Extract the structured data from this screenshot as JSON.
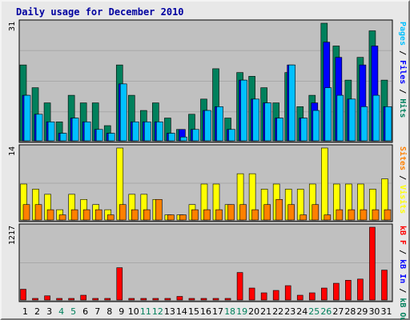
{
  "chart_data": {
    "type": "bar",
    "title": "Daily usage for December 2010",
    "categories": [
      "1",
      "2",
      "3",
      "4",
      "5",
      "6",
      "7",
      "8",
      "9",
      "10",
      "11",
      "12",
      "13",
      "14",
      "15",
      "16",
      "17",
      "18",
      "19",
      "20",
      "21",
      "22",
      "23",
      "24",
      "25",
      "26",
      "27",
      "28",
      "29",
      "30",
      "31"
    ],
    "weekend_days": [
      4,
      5,
      11,
      12,
      18,
      19,
      25,
      26
    ],
    "colors": {
      "title": "#0000a0",
      "hits": "#00805c",
      "files": "#0000ff",
      "pages": "#00c0ff",
      "visits": "#ffff00",
      "sites": "#ff8000",
      "kbin": "#0000ff",
      "kbout": "#00805c",
      "kbf": "#ff0000",
      "weekday_label": "#000000",
      "weekend_label": "#00805c",
      "plot_bg": "#c0c0c0",
      "frame_bg": "#e8e8e8"
    },
    "panels": [
      {
        "id": "hits_files_pages",
        "ymax": 31,
        "ymax_label": "31",
        "legend": [
          {
            "text": "Pages",
            "color": "#00c0ff"
          },
          {
            "text": " / ",
            "color": "#000000"
          },
          {
            "text": "Files",
            "color": "#0000ff"
          },
          {
            "text": " / ",
            "color": "#000000"
          },
          {
            "text": "Hits",
            "color": "#00805c"
          }
        ],
        "series": [
          {
            "name": "Hits",
            "color": "#00805c",
            "values": [
              20,
              14,
              10,
              5,
              12,
              10,
              10,
              4,
              20,
              12,
              8,
              10,
              6,
              3,
              7,
              11,
              19,
              6,
              18,
              17,
              14,
              10,
              18,
              9,
              12,
              31,
              25,
              16,
              22,
              29,
              16
            ]
          },
          {
            "name": "Files",
            "color": "#0000ff",
            "values": [
              12,
              7,
              5,
              2,
              6,
              5,
              3,
              2,
              15,
              5,
              5,
              5,
              2,
              3,
              3,
              8,
              9,
              3,
              16,
              11,
              10,
              6,
              20,
              6,
              10,
              26,
              22,
              11,
              20,
              25,
              9
            ]
          },
          {
            "name": "Pages",
            "color": "#00c0ff",
            "values": [
              12,
              7,
              5,
              2,
              6,
              5,
              3,
              2,
              15,
              5,
              5,
              5,
              2,
              1,
              3,
              8,
              9,
              3,
              16,
              11,
              10,
              6,
              20,
              6,
              8,
              14,
              12,
              11,
              9,
              12,
              9
            ]
          }
        ]
      },
      {
        "id": "visits_sites",
        "ymax": 14,
        "ymax_label": "14",
        "legend": [
          {
            "text": "Sites",
            "color": "#ff8000"
          },
          {
            "text": " / ",
            "color": "#000000"
          },
          {
            "text": "Visits",
            "color": "#ffff00"
          }
        ],
        "series": [
          {
            "name": "Visits",
            "color": "#ffff00",
            "values": [
              7,
              6,
              5,
              2,
              5,
              4,
              3,
              2,
              14,
              5,
              5,
              4,
              1,
              1,
              3,
              7,
              7,
              3,
              9,
              9,
              6,
              7,
              6,
              6,
              7,
              14,
              7,
              7,
              7,
              6,
              8
            ]
          },
          {
            "name": "Sites",
            "color": "#ff8000",
            "values": [
              3,
              3,
              2,
              1,
              2,
              2,
              2,
              1,
              3,
              2,
              2,
              4,
              1,
              1,
              2,
              2,
              2,
              3,
              3,
              2,
              3,
              4,
              3,
              1,
              3,
              1,
              2,
              2,
              2,
              2,
              2
            ]
          }
        ]
      },
      {
        "id": "kbytes",
        "ymax": 1217,
        "ymax_label": "1217",
        "legend": [
          {
            "text": "kB F",
            "color": "#ff0000"
          },
          {
            "text": " / ",
            "color": "#000000"
          },
          {
            "text": "kB In",
            "color": "#0000ff"
          },
          {
            "text": " / ",
            "color": "#000000"
          },
          {
            "text": "kB Out",
            "color": "#00805c"
          }
        ],
        "series": [
          {
            "name": "kB F",
            "color": "#ff0000",
            "values": [
              180,
              20,
              70,
              10,
              10,
              80,
              15,
              15,
              540,
              15,
              10,
              15,
              10,
              60,
              10,
              10,
              10,
              10,
              460,
              200,
              120,
              160,
              240,
              80,
              120,
              200,
              280,
              330,
              350,
              1217,
              500
            ]
          }
        ]
      }
    ]
  }
}
